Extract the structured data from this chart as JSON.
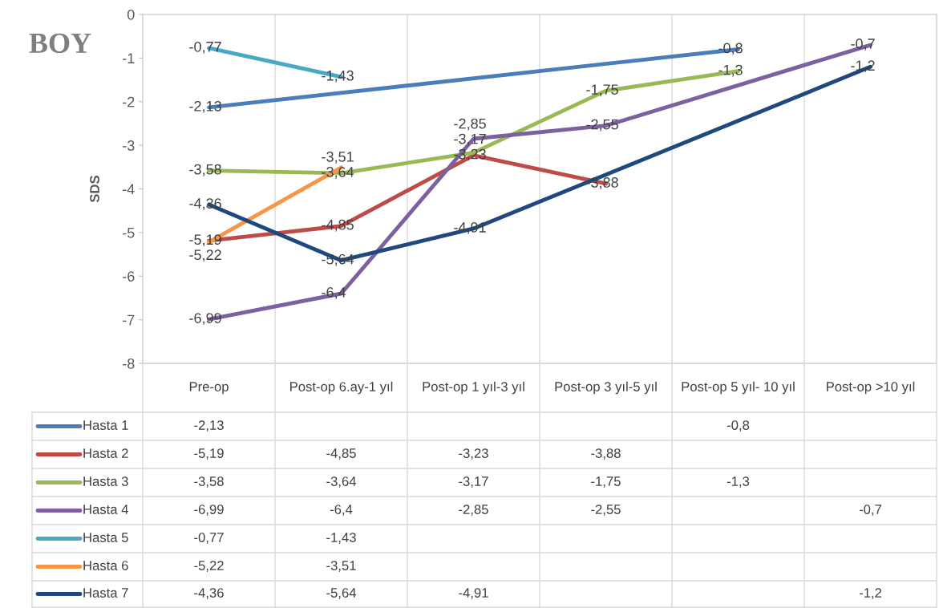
{
  "chart_data": {
    "type": "line",
    "title": "BOY",
    "ylabel": "SDS",
    "categories": [
      "Pre-op",
      "Post-op 6.ay-1 yıl",
      "Post-op 1 yıl-3 yıl",
      "Post-op 3 yıl-5 yıl",
      "Post-op 5 yıl- 10 yıl",
      "Post-op >10 yıl"
    ],
    "ylim": [
      -8,
      0
    ],
    "yticks": [
      0,
      -1,
      -2,
      -3,
      -4,
      -5,
      -6,
      -7,
      -8
    ],
    "grid": false,
    "legend": "bottom",
    "marker": "none",
    "line_style": "solid",
    "series": [
      {
        "name": "Hasta 1",
        "color": "#4a7ebb",
        "values": [
          -2.13,
          null,
          null,
          null,
          -0.8,
          null
        ],
        "value_labels": [
          "-2,13",
          null,
          null,
          null,
          "-0,8",
          null
        ]
      },
      {
        "name": "Hasta 2",
        "color": "#be4b48",
        "values": [
          -5.19,
          -4.85,
          -3.23,
          -3.88,
          null,
          null
        ],
        "value_labels": [
          "-5,19",
          "-4,85",
          "-3,23",
          "-3,88",
          null,
          null
        ]
      },
      {
        "name": "Hasta 3",
        "color": "#98b954",
        "values": [
          -3.58,
          -3.64,
          -3.17,
          -1.75,
          -1.3,
          null
        ],
        "value_labels": [
          "-3,58",
          "-3,64",
          "-3,17",
          "-1,75",
          "-1,3",
          null
        ]
      },
      {
        "name": "Hasta 4",
        "color": "#7d60a0",
        "values": [
          -6.99,
          -6.4,
          -2.85,
          -2.55,
          null,
          -0.7
        ],
        "value_labels": [
          "-6,99",
          "-6,4",
          "-2,85",
          "-2,55",
          null,
          "-0,7"
        ]
      },
      {
        "name": "Hasta 5",
        "color": "#46aac5",
        "values": [
          -0.77,
          -1.43,
          null,
          null,
          null,
          null
        ],
        "value_labels": [
          "-0,77",
          "-1,43",
          null,
          null,
          null,
          null
        ]
      },
      {
        "name": "Hasta 6",
        "color": "#f79646",
        "values": [
          -5.22,
          -3.51,
          null,
          null,
          null,
          null
        ],
        "value_labels": [
          "-5,22",
          "-3,51",
          null,
          null,
          null,
          null
        ]
      },
      {
        "name": "Hasta 7",
        "color": "#1f497d",
        "values": [
          -4.36,
          -5.64,
          -4.91,
          null,
          null,
          -1.2
        ],
        "value_labels": [
          "-4,36",
          "-5,64",
          "-4,91",
          null,
          null,
          "-1,2"
        ]
      }
    ]
  }
}
